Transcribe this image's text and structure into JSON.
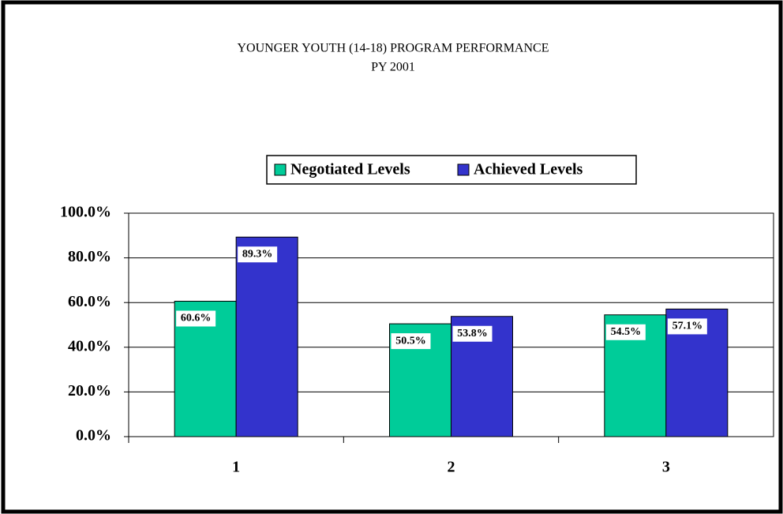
{
  "chart_data": {
    "type": "bar",
    "title": [
      "YOUNGER YOUTH (14-18) PROGRAM PERFORMANCE",
      "PY 2001"
    ],
    "categories": [
      "1",
      "2",
      "3"
    ],
    "series": [
      {
        "name": "Negotiated Levels",
        "color": "#00cc99",
        "values": [
          60.6,
          50.5,
          54.5
        ],
        "value_labels": [
          "60.6%",
          "50.5%",
          "54.5%"
        ]
      },
      {
        "name": "Achieved Levels",
        "color": "#3333cc",
        "values": [
          89.3,
          53.8,
          57.1
        ],
        "value_labels": [
          "89.3%",
          "53.8%",
          "57.1%"
        ]
      }
    ],
    "ylim": [
      0,
      100
    ],
    "yticks": [
      {
        "value": 0,
        "label": "0.0%"
      },
      {
        "value": 20,
        "label": "20.0%"
      },
      {
        "value": 40,
        "label": "40.0%"
      },
      {
        "value": 60,
        "label": "60.0%"
      },
      {
        "value": 80,
        "label": "80.0%"
      },
      {
        "value": 100,
        "label": "100.0%"
      }
    ],
    "grid": true,
    "legend": "top"
  }
}
